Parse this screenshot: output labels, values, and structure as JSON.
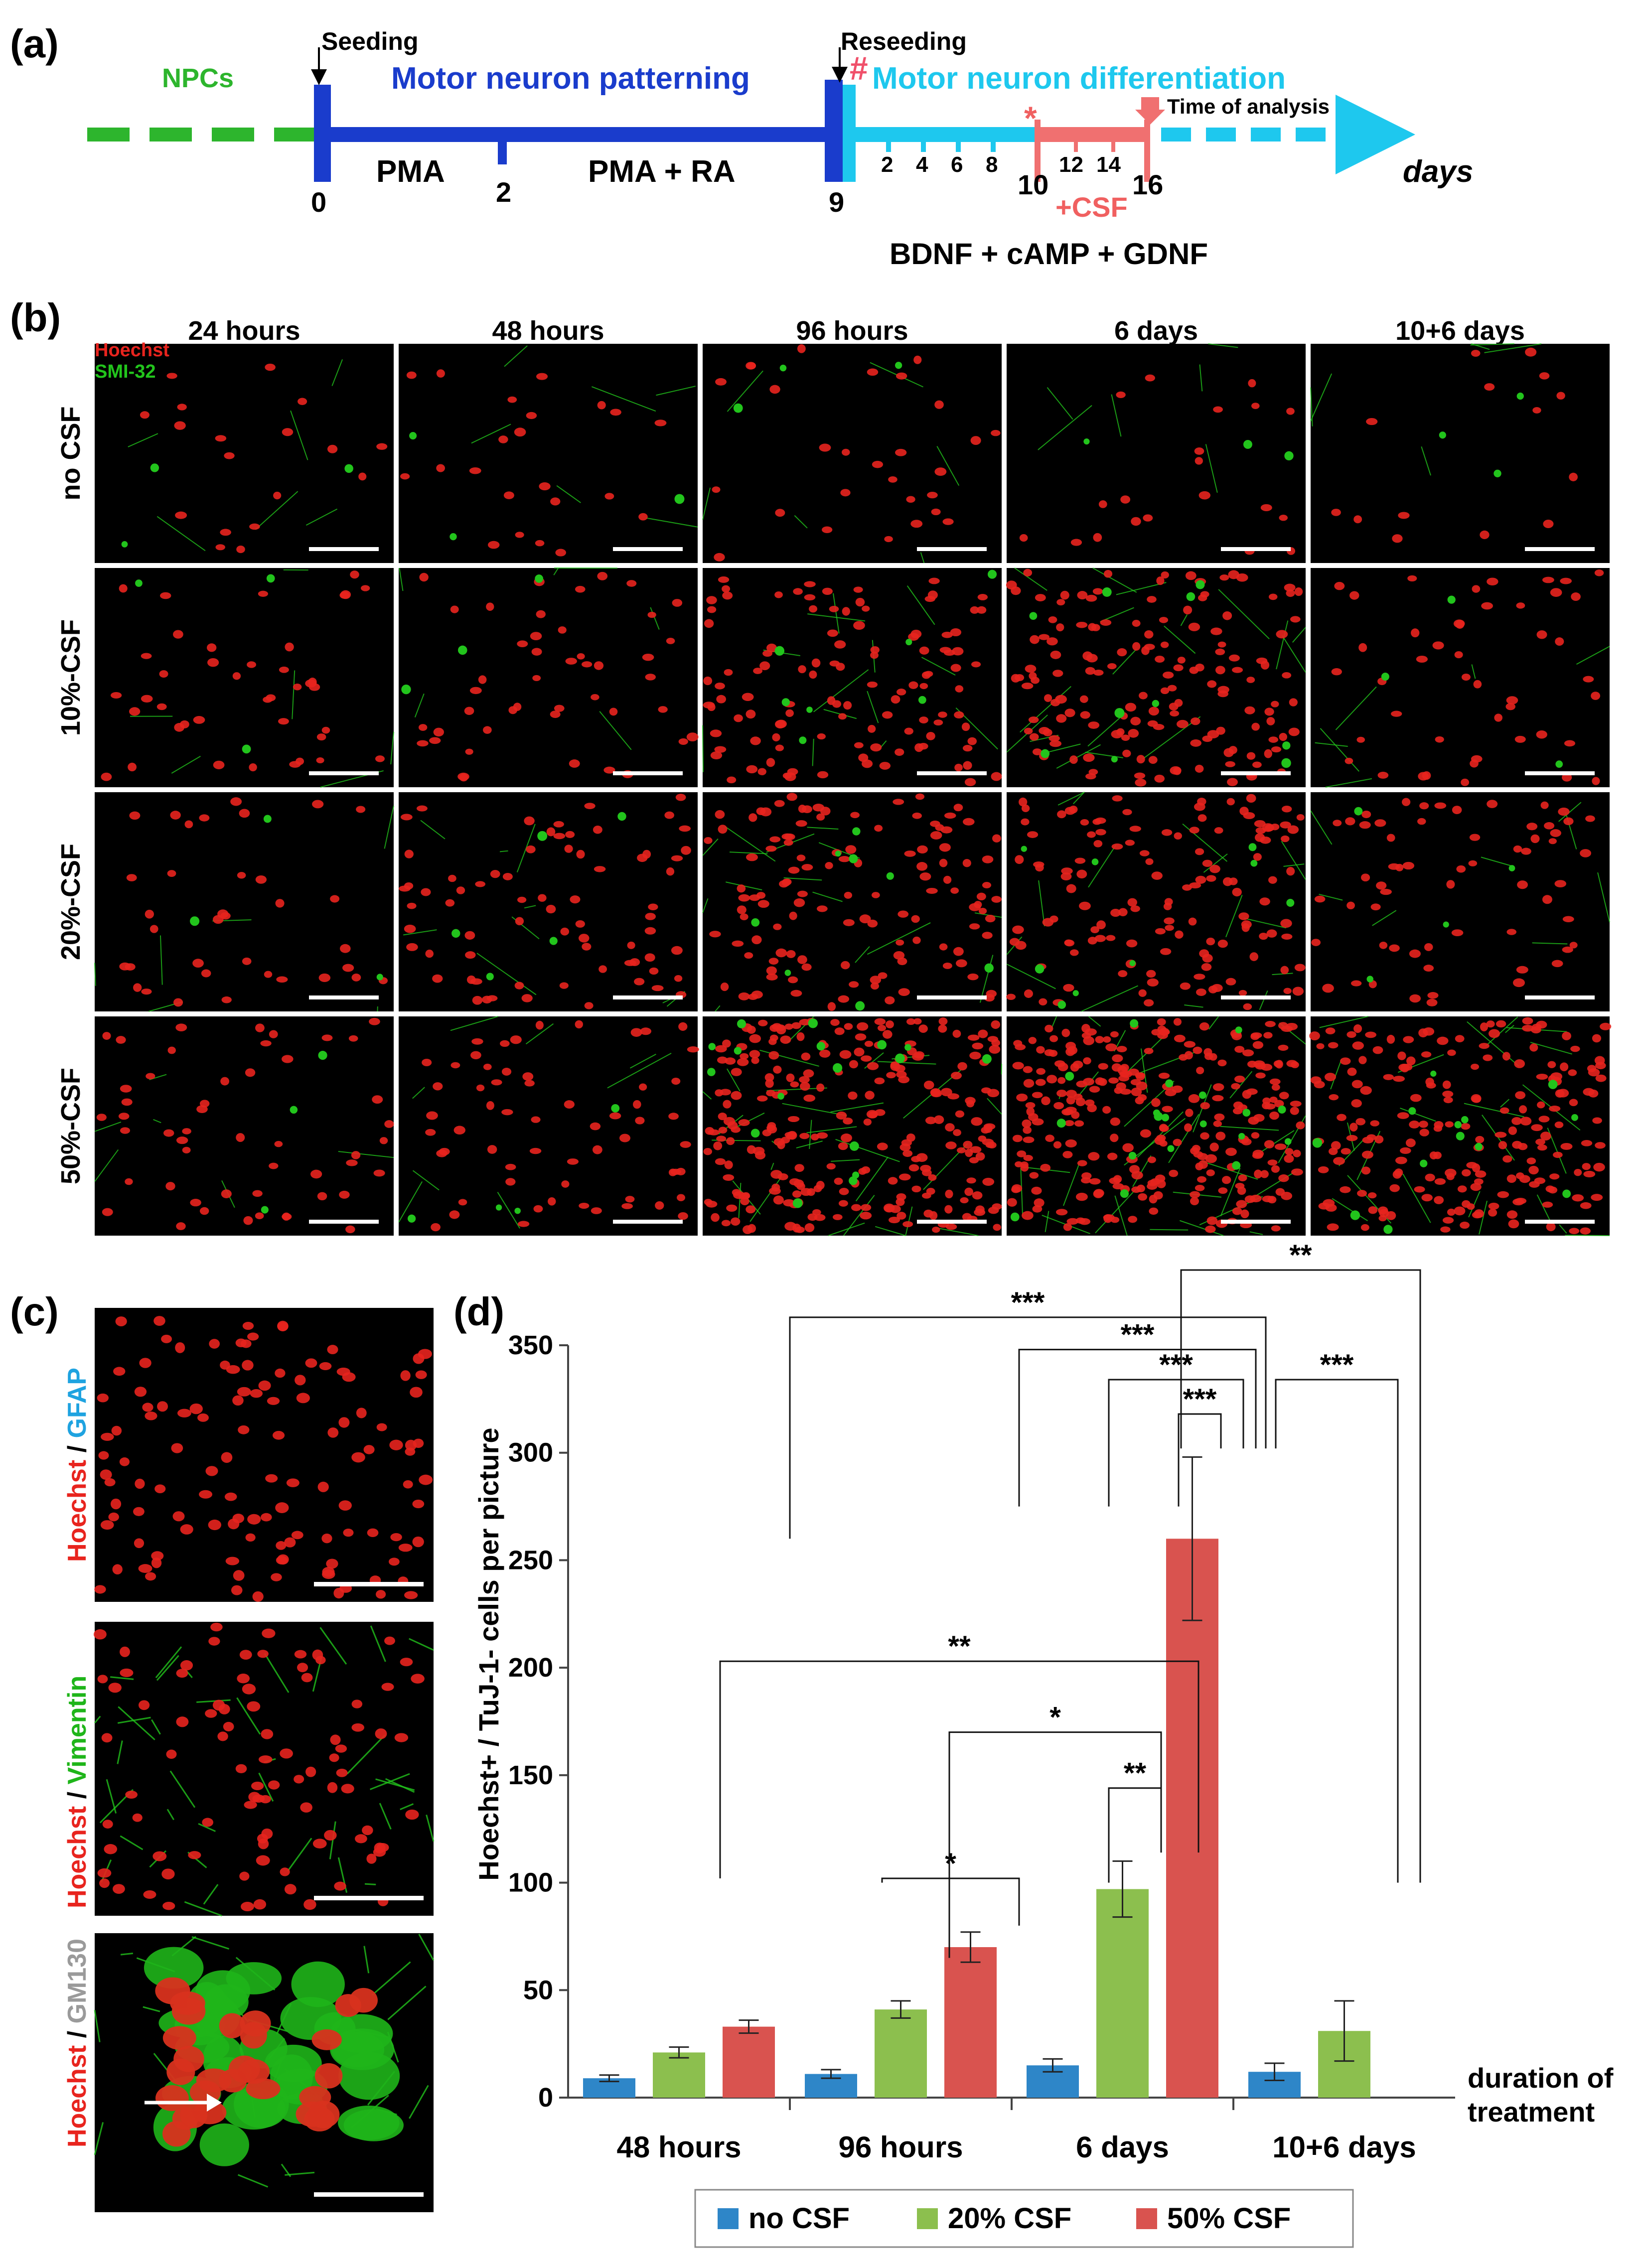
{
  "panel_labels": {
    "a": "(a)",
    "b": "(b)",
    "c": "(c)",
    "d": "(d)"
  },
  "timeline": {
    "npcs": "NPCs",
    "seeding": "Seeding",
    "reseeding": "Reseeding",
    "patterning": "Motor neuron patterning",
    "differentiation": "Motor neuron differentiation",
    "time_of_analysis": "Time of analysis",
    "hash": "#",
    "asterisk": "*",
    "pma": "PMA",
    "pma_ra": "PMA + RA",
    "plus_csf": "+CSF",
    "factors": "BDNF + cAMP + GDNF",
    "days": "days",
    "tick_0": "0",
    "tick_2": "2",
    "tick_9": "9",
    "small_ticks": [
      "2",
      "4",
      "6",
      "8"
    ],
    "tick_10": "10",
    "small_ticks_red": [
      "12",
      "14"
    ],
    "tick_16": "16"
  },
  "grid": {
    "columns": [
      "24 hours",
      "48 hours",
      "96 hours",
      "6 days",
      "10+6 days"
    ],
    "rows": [
      "no CSF",
      "10%-CSF",
      "20%-CSF",
      "50%-CSF"
    ],
    "legend_hoechst": "Hoechst",
    "legend_smi": "SMI-32",
    "colors": {
      "nucleus": "#e8241e",
      "neurite": "#22c41c"
    }
  },
  "panel_c": {
    "labels": [
      {
        "first": "Hoechst",
        "sep": " / ",
        "second": "GFAP",
        "second_color": "#1fa3e0"
      },
      {
        "first": "Hoechst",
        "sep": " / ",
        "second": "Vimentin",
        "second_color": "#1fb51a"
      },
      {
        "first": "Hoechst",
        "sep": " / ",
        "second": "GM130",
        "second_color": "#9a9a9a"
      }
    ]
  },
  "chart_data": {
    "type": "bar",
    "title": "",
    "ylabel": "Hoechst+ / TuJ-1- cells per picture",
    "xlabel": "duration of treatment",
    "xlabel_lines": [
      "duration of",
      "treatment"
    ],
    "ylim": [
      0,
      350
    ],
    "yticks": [
      0,
      50,
      100,
      150,
      200,
      250,
      300,
      350
    ],
    "categories": [
      "48 hours",
      "96 hours",
      "6 days",
      "10+6 days"
    ],
    "series": [
      {
        "name": "no CSF",
        "color": "#2e86c8",
        "values": [
          9,
          11,
          15,
          12
        ],
        "errors": [
          1.5,
          2,
          3,
          4
        ]
      },
      {
        "name": "20% CSF",
        "color": "#8cbf4e",
        "values": [
          21,
          41,
          97,
          31
        ],
        "errors": [
          2.5,
          4,
          13,
          14
        ]
      },
      {
        "name": "50% CSF",
        "color": "#d9534f",
        "values": [
          33,
          70,
          260,
          null
        ],
        "errors": [
          3,
          7,
          38,
          null
        ]
      }
    ],
    "significance": [
      "*",
      "**",
      "*",
      "**",
      "***",
      "***",
      "***",
      "***",
      "***",
      "**"
    ],
    "legend_position": "bottom"
  }
}
